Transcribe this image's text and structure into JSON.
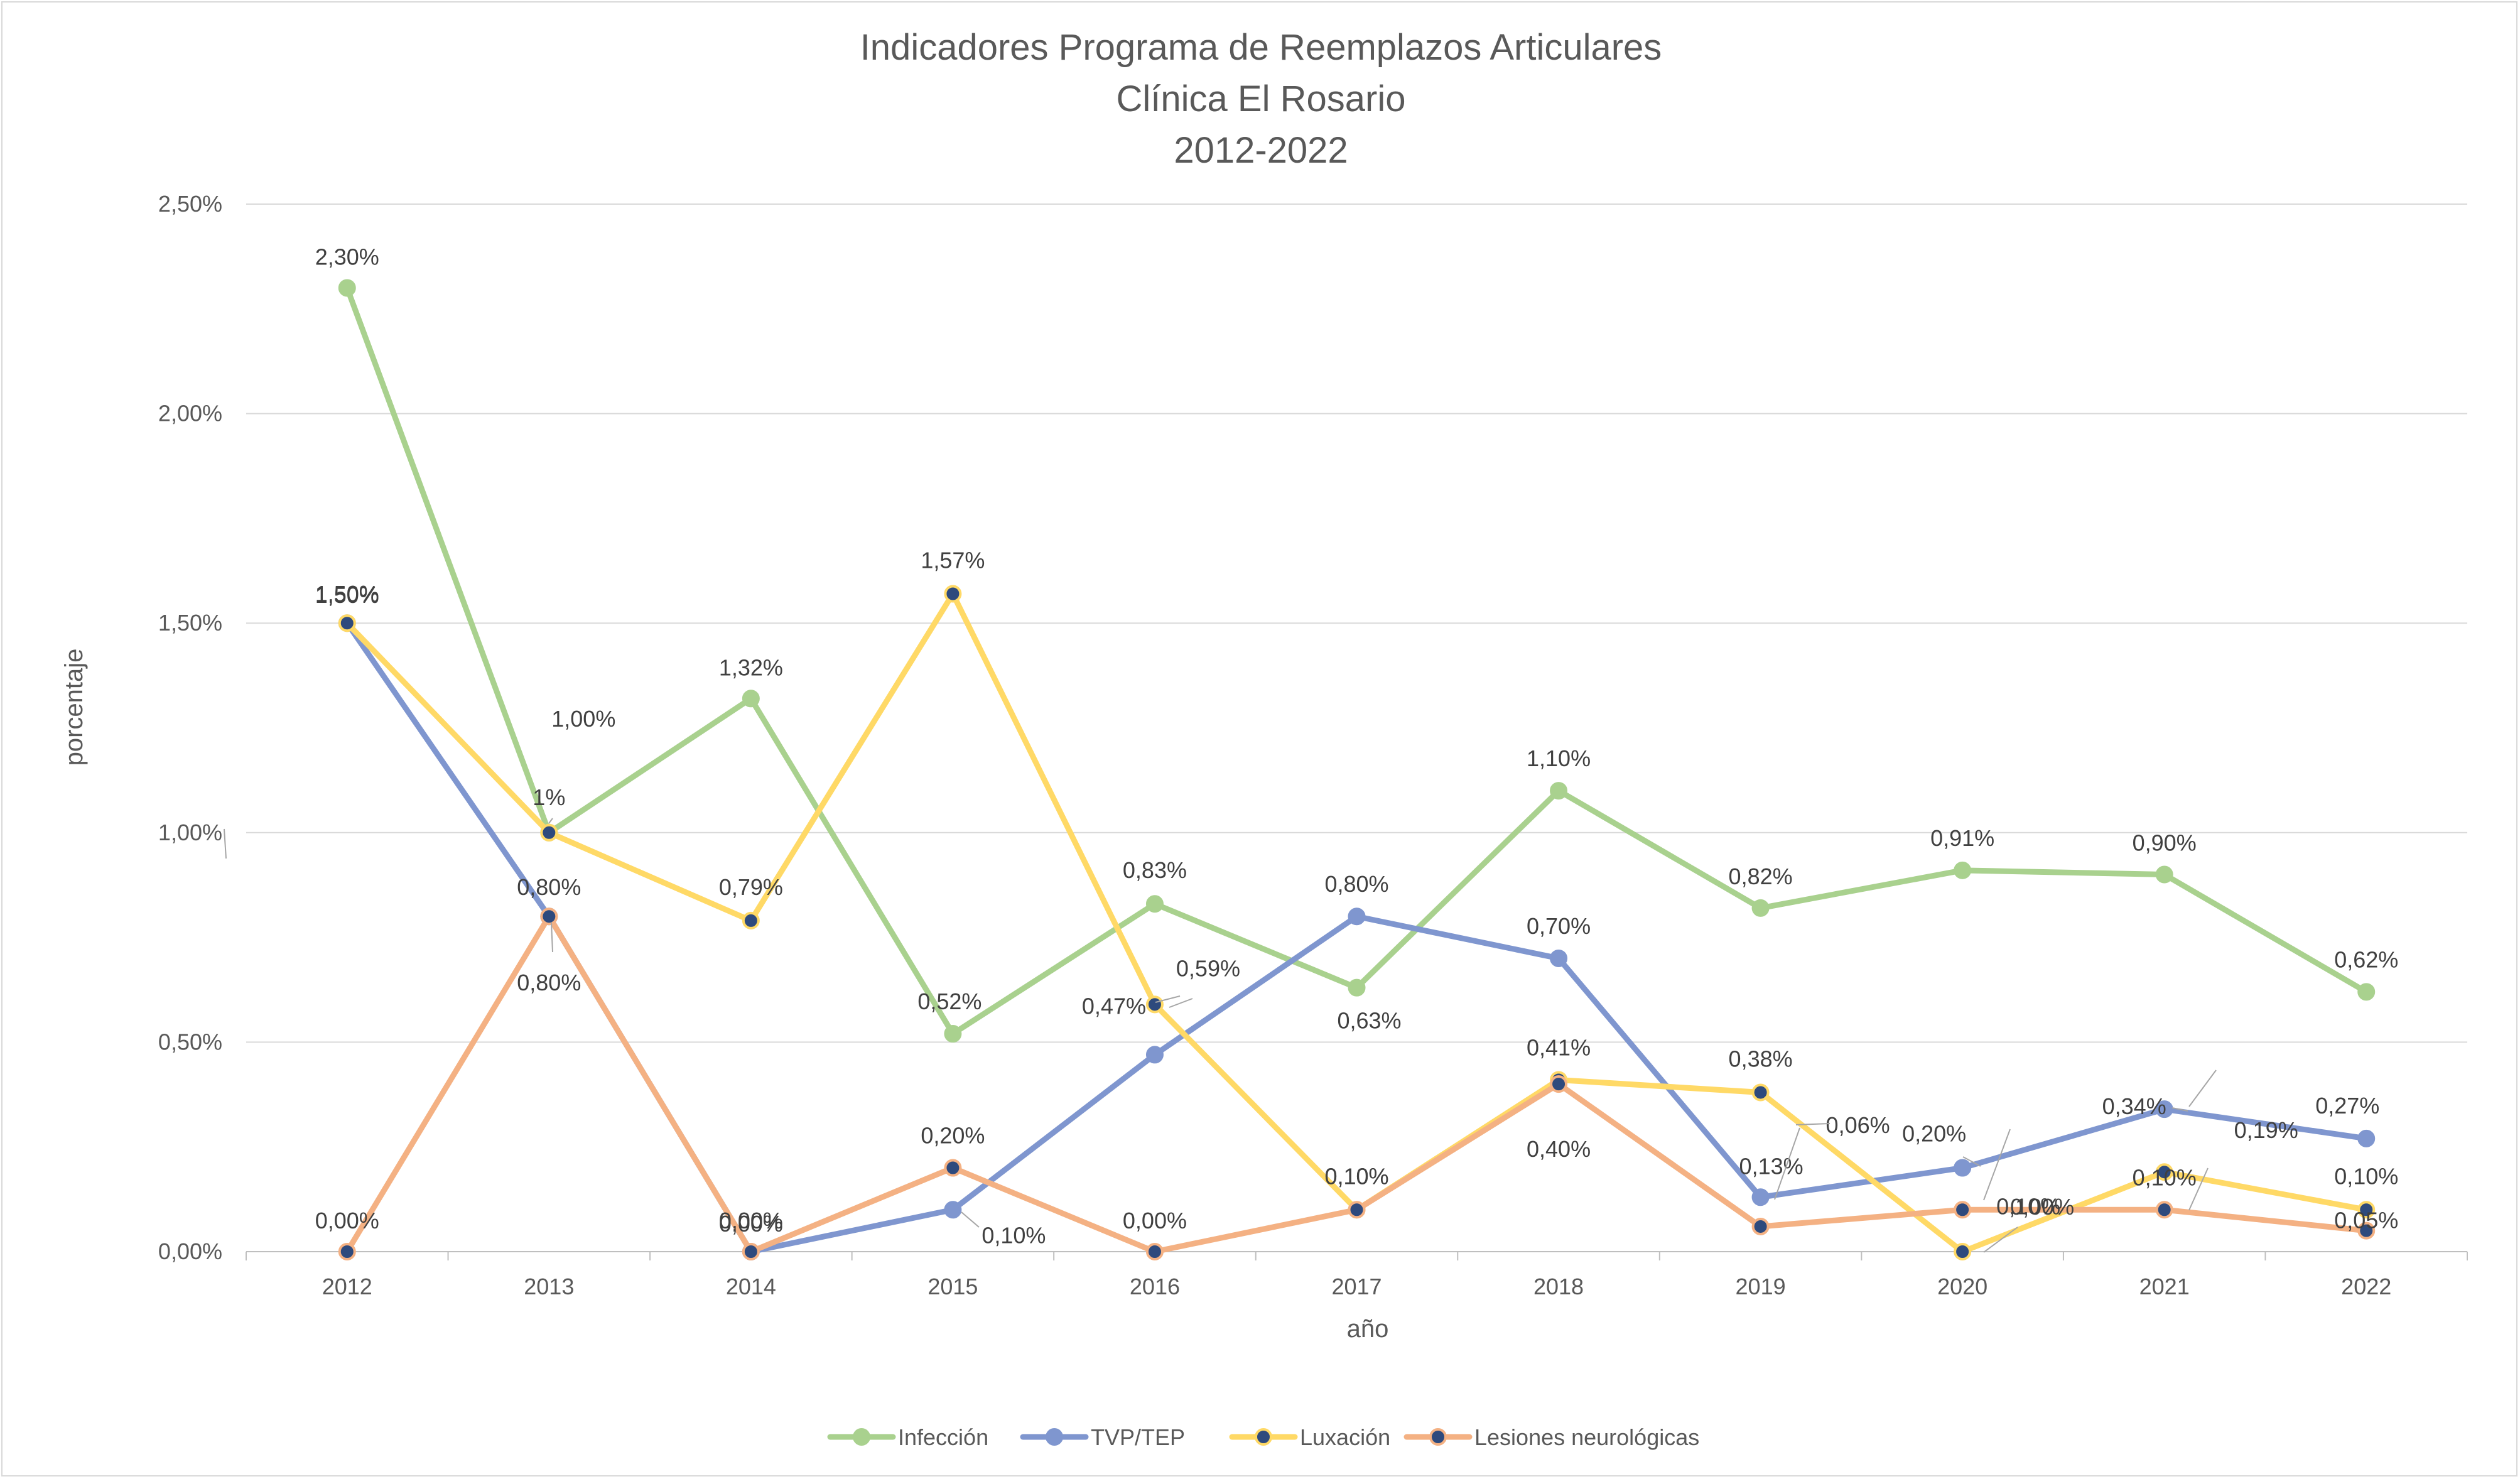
{
  "chart_data": {
    "type": "line",
    "title": [
      "Indicadores Programa de Reemplazos Articulares",
      "Clínica El Rosario",
      "2012-2022"
    ],
    "xlabel": "año",
    "ylabel": "porcentaje",
    "categories": [
      "2012",
      "2013",
      "2014",
      "2015",
      "2016",
      "2017",
      "2018",
      "2019",
      "2020",
      "2021",
      "2022"
    ],
    "ylim": [
      0,
      2.5
    ],
    "yticks": [
      {
        "value": 0,
        "label": "0,00%"
      },
      {
        "value": 0.5,
        "label": "0,50%"
      },
      {
        "value": 1.0,
        "label": "1,00%"
      },
      {
        "value": 1.5,
        "label": "1,50%"
      },
      {
        "value": 2.0,
        "label": "2,00%"
      },
      {
        "value": 2.5,
        "label": "2,50%"
      }
    ],
    "grid": true,
    "legend_position": "bottom",
    "series": [
      {
        "name": "Infección",
        "color": "#a9d18e",
        "marker_fill": "#a9d18e",
        "values": [
          2.3,
          1.0,
          1.32,
          0.52,
          0.83,
          0.63,
          1.1,
          0.82,
          0.91,
          0.9,
          0.62
        ],
        "labels": [
          "2,30%",
          "1%",
          "1,32%",
          "0,52%",
          "0,83%",
          "0,63%",
          "1,10%",
          "0,82%",
          "0,91%",
          "0,90%",
          "0,62%"
        ]
      },
      {
        "name": "TVP/TEP",
        "color": "#7f96cf",
        "marker_fill": "#7f96cf",
        "values": [
          1.5,
          0.8,
          0.0,
          0.1,
          0.47,
          0.8,
          0.7,
          0.13,
          0.2,
          0.34,
          0.27
        ],
        "labels": [
          "1,50%",
          "0,80%",
          "0,00%",
          "0,10%",
          "0,47%",
          "0,80%",
          "0,70%",
          "0,13%",
          "0,20%",
          "0,34%",
          "0,27%"
        ]
      },
      {
        "name": "Luxación",
        "color": "#ffd966",
        "marker_fill": "#2e4a7d",
        "values": [
          1.5,
          1.0,
          0.79,
          1.57,
          0.59,
          0.1,
          0.41,
          0.38,
          0.0,
          0.19,
          0.1
        ],
        "labels": [
          "1,50%",
          "1,00%",
          "0,79%",
          "1,57%",
          "0,59%",
          "0,10%",
          "0,41%",
          "0,38%",
          "0,00%",
          "0,19%",
          "0,10%"
        ]
      },
      {
        "name": "Lesiones neurológicas",
        "color": "#f4b183",
        "marker_fill": "#2e4a7d",
        "values": [
          0.0,
          0.8,
          0.0,
          0.2,
          0.0,
          0.1,
          0.4,
          0.06,
          0.1,
          0.1,
          0.05
        ],
        "labels": [
          "0,00%",
          "0,80%",
          "0,00%",
          "0,20%",
          "0,00%",
          "0,10%",
          "0,40%",
          "0,06%",
          "0,10%",
          "0,10%",
          "0,05%"
        ]
      }
    ]
  }
}
